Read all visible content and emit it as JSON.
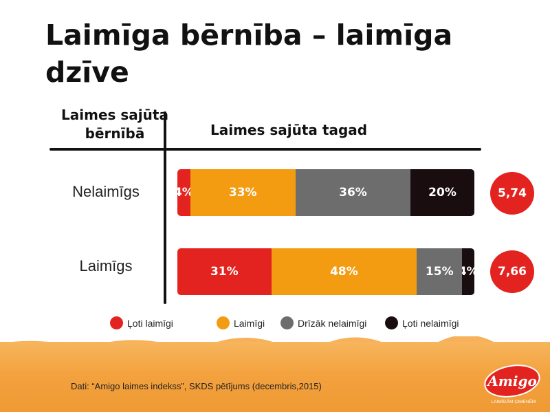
{
  "slide": {
    "title": "Laimīga bērnība – laimīga dzīve",
    "row_header": "Laimes sajūta bērnībā",
    "col_header": "Laimes sajūta tagad",
    "source": "Dati: “Amigo laimes indekss”, SKDS pētījums (decembris,2015)",
    "logo": {
      "brand": "Amigo",
      "tagline": "LAIMĪGĀM ĢIMENĒM"
    }
  },
  "colors": {
    "very_happy": "#e3231f",
    "happy": "#f39c12",
    "rather_unhappy": "#6d6d6d",
    "very_unhappy": "#1a0d10",
    "index_circle": "#e3231f",
    "footer": "#f3a23f"
  },
  "chart_data": {
    "type": "bar",
    "orientation": "horizontal",
    "stacked": true,
    "percent": true,
    "categories": [
      "Nelaimīgs",
      "Laimīgs"
    ],
    "series": [
      {
        "name": "Ļoti laimīgi",
        "color": "#e3231f",
        "values": [
          4,
          31
        ],
        "labels": [
          "4%",
          "31%"
        ]
      },
      {
        "name": "Laimīgi",
        "color": "#f39c12",
        "values": [
          33,
          48
        ],
        "labels": [
          "33%",
          "48%"
        ]
      },
      {
        "name": "Drīzāk nelaimīgi",
        "color": "#6d6d6d",
        "values": [
          36,
          15
        ],
        "labels": [
          "36%",
          "15%"
        ]
      },
      {
        "name": "Ļoti nelaimīgi",
        "color": "#1a0d10",
        "values": [
          20,
          4
        ],
        "labels": [
          "20%",
          "4%"
        ]
      }
    ],
    "index_values": [
      "5,74",
      "7,66"
    ],
    "legend_position": "bottom",
    "title": "Laimīga bērnība – laimīga dzīve",
    "row_axis_label": "Laimes sajūta bērnībā",
    "value_axis_label": "Laimes sajūta tagad"
  }
}
